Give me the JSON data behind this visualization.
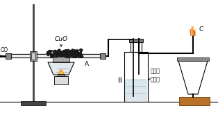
{
  "bg_color": "#ffffff",
  "line_color": "#000000",
  "gray_color": "#888888",
  "light_gray": "#cccccc",
  "dark_gray": "#444444",
  "wood_color": "#b8722a",
  "water_color": "#b0c8d8",
  "labels": {
    "CO": "CO",
    "CuO": "CuO",
    "A": "A",
    "B": "B",
    "C": "C",
    "lime_water": "澄清的\n石灰水"
  },
  "figsize": [
    3.14,
    1.69
  ],
  "dpi": 100
}
